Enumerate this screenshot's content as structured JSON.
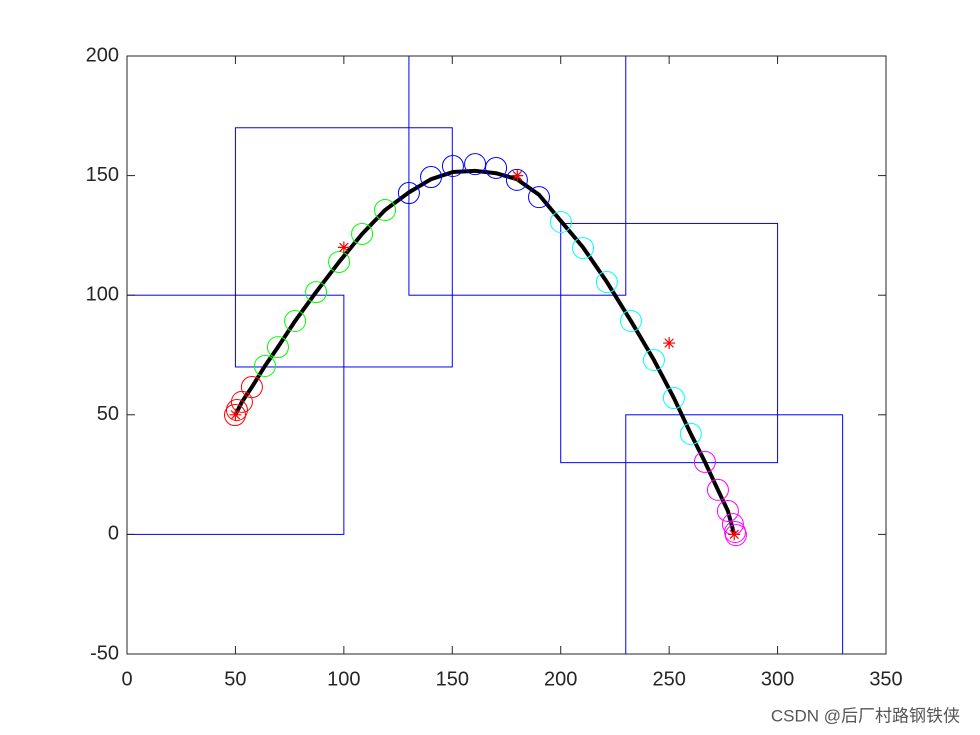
{
  "chart_data": {
    "type": "line",
    "xlim": [
      0,
      350
    ],
    "ylim": [
      -50,
      200
    ],
    "xticks": [
      0,
      50,
      100,
      150,
      200,
      250,
      300,
      350
    ],
    "yticks": [
      -50,
      0,
      50,
      100,
      150,
      200
    ],
    "boxes": [
      {
        "x": [
          0,
          100
        ],
        "y": [
          0,
          100
        ],
        "color": "#0000ff"
      },
      {
        "x": [
          50,
          150
        ],
        "y": [
          70,
          170
        ],
        "color": "#0000ff"
      },
      {
        "x": [
          130,
          230
        ],
        "y": [
          100,
          200
        ],
        "color": "#0000ff"
      },
      {
        "x": [
          200,
          300
        ],
        "y": [
          30,
          130
        ],
        "color": "#0000ff"
      },
      {
        "x": [
          230,
          330
        ],
        "y": [
          -50,
          50
        ],
        "color": "#0000ff"
      }
    ],
    "series": [
      {
        "color": "#ff0000",
        "marker": "o",
        "x": [
          49.8,
          50.7,
          53,
          57.6
        ],
        "values": [
          49.9,
          52,
          55.4,
          61.6
        ]
      },
      {
        "color": "#00ff00",
        "marker": "o",
        "x": [
          63.6,
          69.6,
          77.5,
          87.2,
          97.8,
          108.4,
          119
        ],
        "values": [
          70.4,
          78.3,
          89.2,
          101.3,
          113.9,
          125.6,
          135.6
        ]
      },
      {
        "color": "#0000ff",
        "marker": "o",
        "x": [
          130,
          140.2,
          150.3,
          160.5,
          170.2,
          179.8,
          190
        ],
        "values": [
          142.7,
          149.4,
          154,
          154.8,
          153.2,
          148.2,
          141
        ]
      },
      {
        "color": "#00ffff",
        "marker": "o",
        "x": [
          200.1,
          210.3,
          221.3,
          232.4,
          243,
          252.2,
          260
        ],
        "values": [
          130.6,
          119.7,
          105.5,
          89.2,
          72.9,
          57,
          42
        ]
      },
      {
        "color": "#ff00ff",
        "marker": "o",
        "x": [
          266.5,
          272.5,
          277.1,
          279.4,
          280.4,
          280.8
        ],
        "values": [
          30.3,
          18.6,
          9.8,
          4.3,
          1,
          -0.3
        ]
      },
      {
        "color": "#000000",
        "marker": "none",
        "x": [
          50,
          53,
          57.6,
          63.6,
          69.6,
          77.5,
          87.2,
          97.8,
          108.4,
          119,
          130,
          140.2,
          150.3,
          160.5,
          170.2,
          179.8,
          190,
          200.1,
          210.3,
          221.3,
          232.4,
          243,
          252.2,
          260,
          266.5,
          272.5,
          277.1,
          280
        ],
        "values": [
          50,
          55.4,
          61.6,
          70.4,
          78.3,
          89.2,
          101.3,
          113.9,
          125.6,
          135.6,
          143,
          148.5,
          151.5,
          152,
          151,
          148.5,
          142,
          131,
          120,
          105.5,
          89.2,
          72.9,
          57,
          42,
          30.3,
          18.6,
          9.8,
          0
        ]
      },
      {
        "color": "#ff0000",
        "marker": "*",
        "x": [
          50,
          100,
          180,
          250,
          280
        ],
        "values": [
          50,
          120,
          150,
          80,
          0
        ]
      }
    ],
    "watermark": "CSDN @后厂村路钢铁侠"
  }
}
